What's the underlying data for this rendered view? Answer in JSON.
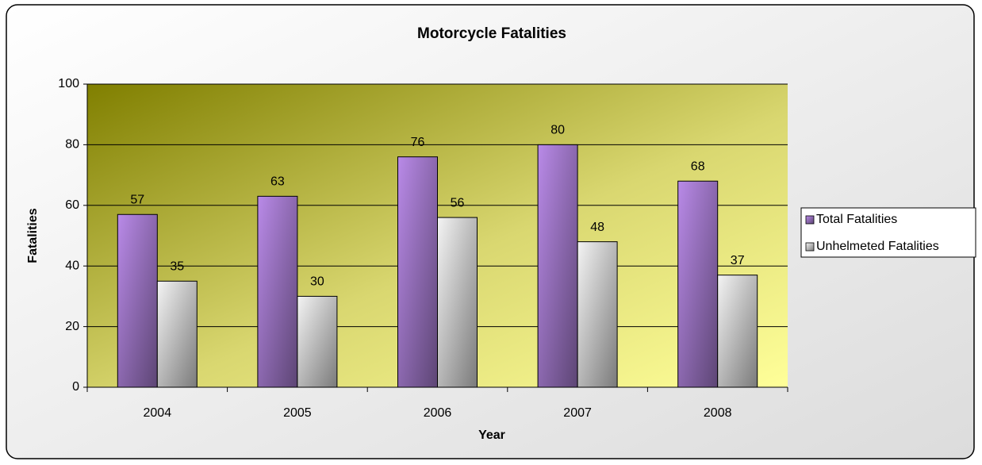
{
  "chart_data": {
    "type": "bar",
    "title": "Motorcycle Fatalities",
    "x_label": "Year",
    "y_label": "Fatalities",
    "categories": [
      "2004",
      "2005",
      "2006",
      "2007",
      "2008"
    ],
    "series": [
      {
        "name": "Total Fatalities",
        "color": "#b98ae8",
        "values": [
          57,
          63,
          76,
          80,
          68
        ]
      },
      {
        "name": "Unhelmeted Fatalities",
        "color": "#f4f4f4",
        "values": [
          35,
          30,
          56,
          48,
          37
        ]
      }
    ],
    "ylim": [
      0,
      100
    ],
    "yticks": [
      0,
      20,
      40,
      60,
      80,
      100
    ],
    "grid": true,
    "legend": "right"
  }
}
